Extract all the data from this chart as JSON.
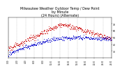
{
  "title": "Milwaukee Weather Outdoor Temp / Dew Point\nby Minute\n(24 Hours) (Alternate)",
  "title_fontsize": 3.5,
  "background_color": "#ffffff",
  "plot_bg_color": "#ffffff",
  "grid_color": "#888888",
  "temp_color": "#cc0000",
  "dew_color": "#0000cc",
  "ylim": [
    20,
    80
  ],
  "xlim": [
    0,
    1440
  ],
  "yticks_right": [
    30,
    40,
    50,
    60,
    70
  ],
  "xtick_interval": 120
}
